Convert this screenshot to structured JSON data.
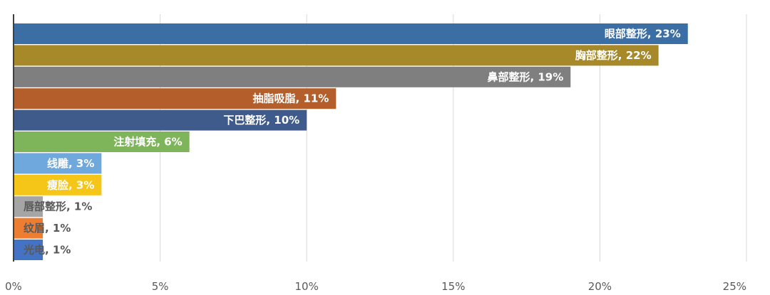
{
  "chart_data": {
    "type": "bar",
    "orientation": "horizontal",
    "categories": [
      "眼部整形",
      "胸部整形",
      "鼻部整形",
      "抽脂吸脂",
      "下巴整形",
      "注射填充",
      "线雕",
      "瘦脸",
      "唇部整形",
      "纹眉",
      "光电"
    ],
    "values": [
      23,
      22,
      19,
      11,
      10,
      6,
      3,
      3,
      1,
      1,
      1
    ],
    "data_labels": [
      "眼部整形, 23%",
      "胸部整形, 22%",
      "鼻部整形, 19%",
      "抽脂吸脂, 11%",
      "下巴整形, 10%",
      "注射填充, 6%",
      "线雕, 3%",
      "瘦脸, 3%",
      "唇部整形, 1%",
      "纹眉, 1%",
      "光电, 1%"
    ],
    "colors": [
      "#3a6ea5",
      "#a8892a",
      "#7f7f7f",
      "#b45f2b",
      "#3f5b8c",
      "#7fb55a",
      "#6fa8dc",
      "#f5c518",
      "#a5a5a5",
      "#ed7d31",
      "#4472c4"
    ],
    "label_colors": [
      "#ffffff",
      "#ffffff",
      "#ffffff",
      "#ffffff",
      "#ffffff",
      "#ffffff",
      "#ffffff",
      "#ffffff",
      "#595959",
      "#595959",
      "#595959"
    ],
    "xlim": [
      0,
      25
    ],
    "xticks": [
      0,
      5,
      10,
      15,
      20,
      25
    ],
    "xtick_labels": [
      "0%",
      "5%",
      "10%",
      "15%",
      "20%",
      "25%"
    ],
    "grid": true,
    "legend": "none"
  }
}
